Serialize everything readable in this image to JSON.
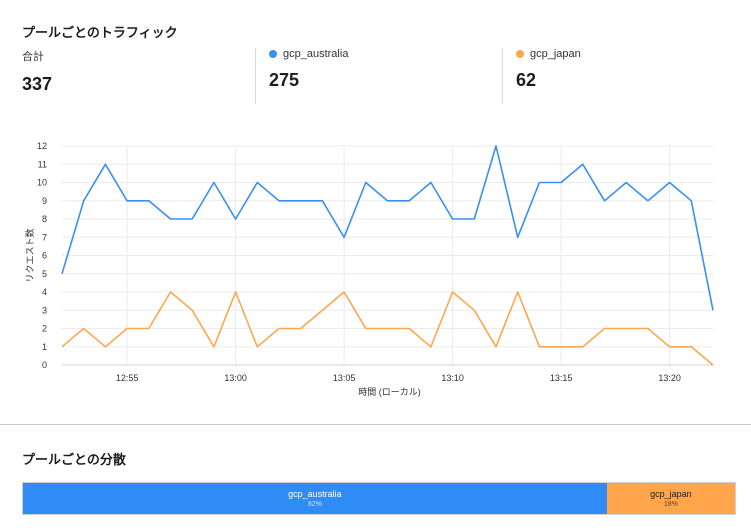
{
  "traffic": {
    "title": "プールごとのトラフィック",
    "stats": [
      {
        "label": "合計",
        "value": "337",
        "color": ""
      },
      {
        "label": "gcp_australia",
        "value": "275",
        "color": "#3a8ff0"
      },
      {
        "label": "gcp_japan",
        "value": "62",
        "color": "#ffa64d"
      }
    ]
  },
  "chart_data": {
    "type": "line",
    "xlabel": "時間 (ローカル)",
    "ylabel": "リクエスト数",
    "ylim": [
      0,
      12
    ],
    "yticks": [
      0,
      1,
      2,
      3,
      4,
      5,
      6,
      7,
      8,
      9,
      10,
      11,
      12
    ],
    "x": [
      "12:52",
      "12:53",
      "12:54",
      "12:55",
      "12:56",
      "12:57",
      "12:58",
      "12:59",
      "13:00",
      "13:01",
      "13:02",
      "13:03",
      "13:04",
      "13:05",
      "13:06",
      "13:07",
      "13:08",
      "13:09",
      "13:10",
      "13:11",
      "13:12",
      "13:13",
      "13:14",
      "13:15",
      "13:16",
      "13:17",
      "13:18",
      "13:19",
      "13:20",
      "13:21",
      "13:22"
    ],
    "xticks": [
      "12:55",
      "13:00",
      "13:05",
      "13:10",
      "13:15",
      "13:20"
    ],
    "grid": true,
    "series": [
      {
        "name": "gcp_australia",
        "color": "#3a8ff0",
        "values": [
          5,
          9,
          11,
          9,
          9,
          8,
          8,
          10,
          8,
          10,
          9,
          9,
          9,
          7,
          10,
          9,
          9,
          10,
          8,
          8,
          12,
          7,
          10,
          10,
          11,
          9,
          10,
          9,
          10,
          9,
          3
        ]
      },
      {
        "name": "gcp_japan",
        "color": "#ffa64d",
        "values": [
          1,
          2,
          1,
          2,
          2,
          4,
          3,
          1,
          4,
          1,
          2,
          2,
          3,
          4,
          2,
          2,
          2,
          1,
          4,
          3,
          1,
          4,
          1,
          1,
          1,
          2,
          2,
          2,
          1,
          1,
          0
        ]
      }
    ]
  },
  "distribution": {
    "title": "プールごとの分散",
    "segments": [
      {
        "name": "gcp_australia",
        "percent": "82%",
        "share": 82,
        "color": "#2f8cf5",
        "text_color": "#ffffff"
      },
      {
        "name": "gcp_japan",
        "percent": "18%",
        "share": 18,
        "color": "#ffa64d",
        "text_color": "#1d1d1f"
      }
    ]
  }
}
